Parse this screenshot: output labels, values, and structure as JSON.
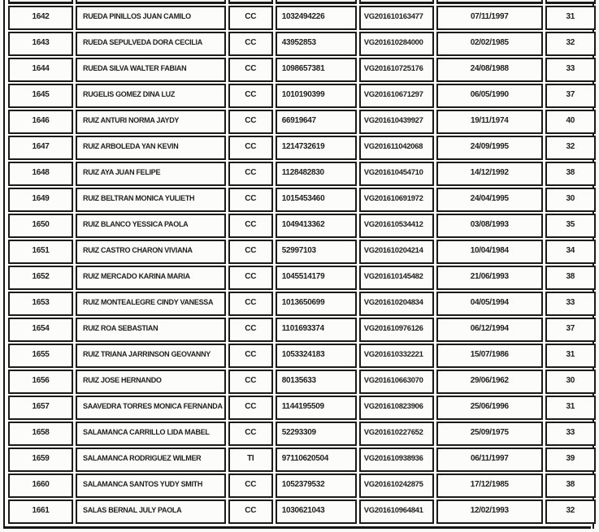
{
  "document": {
    "kind": "scanned-registry-table",
    "visible_header": "none (header row clipped at top of scan)"
  },
  "colors": {
    "paper": "#fbfbf8",
    "ink": "#1f1f1f",
    "border": "#1b1b1b"
  },
  "table": {
    "column_keys": [
      "index",
      "name",
      "doc_type",
      "doc_number",
      "code",
      "birth_date",
      "age"
    ],
    "rows": [
      [
        "1642",
        "RUEDA PINILLOS JUAN CAMILO",
        "CC",
        "1032494226",
        "VG201610163477",
        "07/11/1997",
        "31"
      ],
      [
        "1643",
        "RUEDA SEPULVEDA DORA CECILIA",
        "CC",
        "43952853",
        "VG201610284000",
        "02/02/1985",
        "32"
      ],
      [
        "1644",
        "RUEDA SILVA WALTER FABIAN",
        "CC",
        "1098657381",
        "VG201610725176",
        "24/08/1988",
        "33"
      ],
      [
        "1645",
        "RUGELIS GOMEZ DINA LUZ",
        "CC",
        "1010190399",
        "VG201610671297",
        "06/05/1990",
        "37"
      ],
      [
        "1646",
        "RUIZ ANTURI NORMA JAYDY",
        "CC",
        "66919647",
        "VG201610439927",
        "19/11/1974",
        "40"
      ],
      [
        "1647",
        "RUIZ ARBOLEDA YAN KEVIN",
        "CC",
        "1214732619",
        "VG201611042068",
        "24/09/1995",
        "32"
      ],
      [
        "1648",
        "RUIZ AYA JUAN FELIPE",
        "CC",
        "1128482830",
        "VG201610454710",
        "14/12/1992",
        "38"
      ],
      [
        "1649",
        "RUIZ BELTRAN MONICA YULIETH",
        "CC",
        "1015453460",
        "VG201610691972",
        "24/04/1995",
        "30"
      ],
      [
        "1650",
        "RUIZ BLANCO YESSICA PAOLA",
        "CC",
        "1049413362",
        "VG201610534412",
        "03/08/1993",
        "35"
      ],
      [
        "1651",
        "RUIZ CASTRO CHARON VIVIANA",
        "CC",
        "52997103",
        "VG201610204214",
        "10/04/1984",
        "34"
      ],
      [
        "1652",
        "RUIZ MERCADO KARINA MARIA",
        "CC",
        "1045514179",
        "VG201610145482",
        "21/06/1993",
        "38"
      ],
      [
        "1653",
        "RUIZ MONTEALEGRE CINDY VANESSA",
        "CC",
        "1013650699",
        "VG201610204834",
        "04/05/1994",
        "33"
      ],
      [
        "1654",
        "RUIZ ROA SEBASTIAN",
        "CC",
        "1101693374",
        "VG201610976126",
        "06/12/1994",
        "37"
      ],
      [
        "1655",
        "RUIZ TRIANA JARRINSON GEOVANNY",
        "CC",
        "1053324183",
        "VG201610332221",
        "15/07/1986",
        "31"
      ],
      [
        "1656",
        "RUIZ  JOSE HERNANDO",
        "CC",
        "80135633",
        "VG201610663070",
        "29/06/1962",
        "30"
      ],
      [
        "1657",
        "SAAVEDRA TORRES MONICA FERNANDA",
        "CC",
        "1144195509",
        "VG201610823906",
        "25/06/1996",
        "31"
      ],
      [
        "1658",
        "SALAMANCA CARRILLO LIDA MABEL",
        "CC",
        "52293309",
        "VG201610227652",
        "25/09/1975",
        "33"
      ],
      [
        "1659",
        "SALAMANCA RODRIGUEZ WILMER",
        "TI",
        "97110620504",
        "VG201610938936",
        "06/11/1997",
        "39"
      ],
      [
        "1660",
        "SALAMANCA SANTOS YUDY SMITH",
        "CC",
        "1052379532",
        "VG201610242875",
        "17/12/1985",
        "38"
      ],
      [
        "1661",
        "SALAS BERNAL JULY PAOLA",
        "CC",
        "1030621043",
        "VG201610964841",
        "12/02/1993",
        "32"
      ]
    ]
  }
}
